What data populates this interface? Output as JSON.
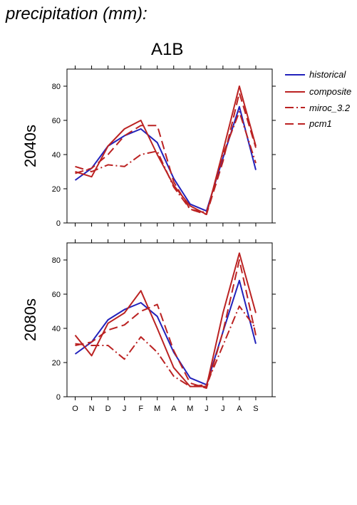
{
  "title": "precipitation (mm):",
  "scenario": "A1B",
  "legend": [
    {
      "name": "historical",
      "color": "#2222bb",
      "dash": "solid"
    },
    {
      "name": "composite",
      "color": "#bb2222",
      "dash": "solid"
    },
    {
      "name": "miroc_3.2",
      "color": "#bb2222",
      "dash": "dashdot"
    },
    {
      "name": "pcm1",
      "color": "#bb2222",
      "dash": "dashed"
    }
  ],
  "chart_data": [
    {
      "type": "line",
      "row_label": "2040s",
      "categories": [
        "O",
        "N",
        "D",
        "J",
        "F",
        "M",
        "A",
        "M",
        "J",
        "J",
        "A",
        "S"
      ],
      "ylim": [
        0,
        90
      ],
      "yticks": [
        0,
        20,
        40,
        60,
        80
      ],
      "series": [
        {
          "name": "historical",
          "values": [
            25,
            32,
            45,
            51,
            55,
            47,
            26,
            11,
            7,
            38,
            68,
            31
          ]
        },
        {
          "name": "composite",
          "values": [
            30,
            27,
            45,
            55,
            60,
            40,
            22,
            10,
            5,
            42,
            80,
            45
          ]
        },
        {
          "name": "miroc_3.2",
          "values": [
            33,
            30,
            34,
            33,
            40,
            42,
            21,
            8,
            6,
            40,
            65,
            35
          ]
        },
        {
          "name": "pcm1",
          "values": [
            29,
            32,
            40,
            51,
            57,
            57,
            24,
            8,
            5,
            36,
            76,
            44
          ]
        }
      ]
    },
    {
      "type": "line",
      "row_label": "2080s",
      "categories": [
        "O",
        "N",
        "D",
        "J",
        "F",
        "M",
        "A",
        "M",
        "J",
        "J",
        "A",
        "S"
      ],
      "ylim": [
        0,
        90
      ],
      "yticks": [
        0,
        20,
        40,
        60,
        80
      ],
      "series": [
        {
          "name": "historical",
          "values": [
            25,
            32,
            45,
            51,
            55,
            47,
            26,
            11,
            7,
            38,
            68,
            31
          ]
        },
        {
          "name": "composite",
          "values": [
            36,
            24,
            43,
            49,
            62,
            40,
            17,
            6,
            6,
            49,
            84,
            49
          ]
        },
        {
          "name": "miroc_3.2",
          "values": [
            31,
            30,
            30,
            22,
            35,
            26,
            12,
            6,
            7,
            30,
            53,
            40
          ]
        },
        {
          "name": "pcm1",
          "values": [
            30,
            32,
            39,
            42,
            50,
            54,
            27,
            8,
            5,
            38,
            80,
            36
          ]
        }
      ]
    }
  ]
}
